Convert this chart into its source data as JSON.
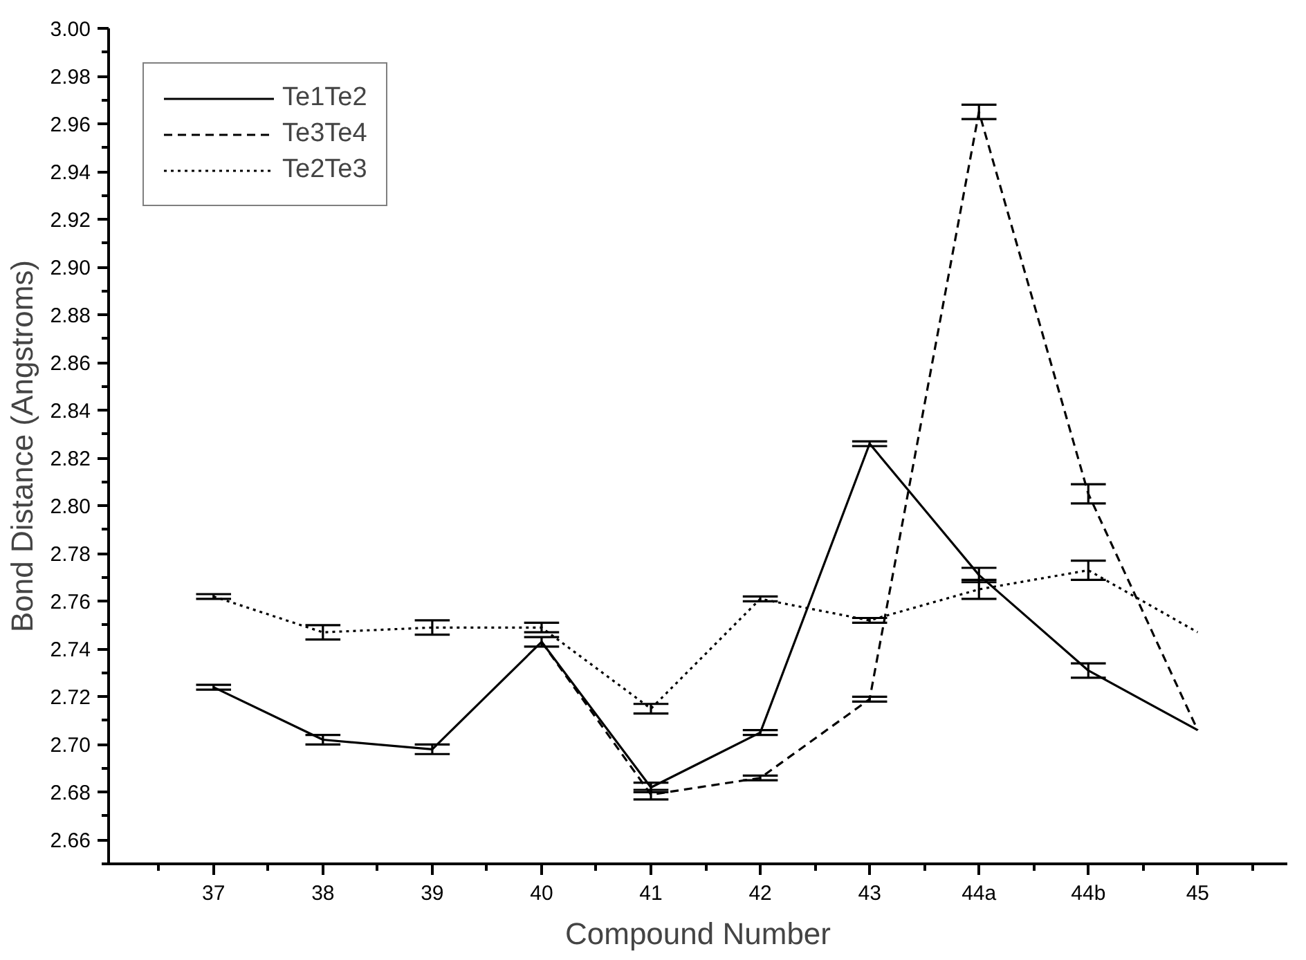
{
  "chart_data": {
    "type": "line",
    "xlabel": "Compound Number",
    "ylabel": "Bond Distance (Angstroms)",
    "categories": [
      "37",
      "38",
      "39",
      "40",
      "41",
      "42",
      "43",
      "44a",
      "44b",
      "45"
    ],
    "ylim": [
      2.65,
      3.0
    ],
    "yticks": [
      {
        "value": 2.65,
        "label": null
      },
      2.66,
      {
        "value": 2.67,
        "label": null
      },
      2.68,
      {
        "value": 2.69,
        "label": null
      },
      "2.70",
      {
        "value": 2.71,
        "label": null
      },
      2.72,
      {
        "value": 2.73,
        "label": null
      },
      2.74,
      {
        "value": 2.75,
        "label": null
      },
      2.76,
      {
        "value": 2.77,
        "label": null
      },
      2.78,
      {
        "value": 2.79,
        "label": null
      },
      "2.80",
      {
        "value": 2.81,
        "label": null
      },
      2.82,
      {
        "value": 2.83,
        "label": null
      },
      2.84,
      {
        "value": 2.85,
        "label": null
      },
      2.86,
      {
        "value": 2.87,
        "label": null
      },
      2.88,
      {
        "value": 2.89,
        "label": null
      },
      "2.90",
      {
        "value": 2.91,
        "label": null
      },
      2.92,
      {
        "value": 2.93,
        "label": null
      },
      2.94,
      {
        "value": 2.95,
        "label": null
      },
      2.96,
      {
        "value": 2.97,
        "label": null
      },
      2.98,
      {
        "value": 2.99,
        "label": null
      },
      "3.00"
    ],
    "series": [
      {
        "name": "Te1Te2",
        "color": "#000000",
        "line_style": "solid",
        "values": [
          2.724,
          2.702,
          2.698,
          2.743,
          2.682,
          2.705,
          2.826,
          2.771,
          2.731,
          2.706
        ],
        "errors": [
          0.001,
          0.002,
          0.002,
          0.002,
          0.002,
          0.001,
          0.001,
          0.003,
          0.003,
          null
        ]
      },
      {
        "name": "Te3Te4",
        "color": "#000000",
        "line_style": "dashed",
        "values": [
          null,
          null,
          null,
          2.743,
          2.679,
          2.686,
          2.719,
          2.965,
          2.805,
          2.706
        ],
        "errors": [
          null,
          null,
          null,
          null,
          0.002,
          0.001,
          0.001,
          0.003,
          0.004,
          null
        ]
      },
      {
        "name": "Te2Te3",
        "color": "#000000",
        "line_style": "dotted",
        "values": [
          2.762,
          2.747,
          2.749,
          2.749,
          2.715,
          2.761,
          2.752,
          2.765,
          2.773,
          2.747
        ],
        "errors": [
          0.001,
          0.003,
          0.003,
          0.002,
          0.002,
          0.001,
          0.001,
          0.004,
          0.004,
          null
        ]
      }
    ],
    "legend": "top left",
    "grid": false,
    "marker": "none"
  }
}
